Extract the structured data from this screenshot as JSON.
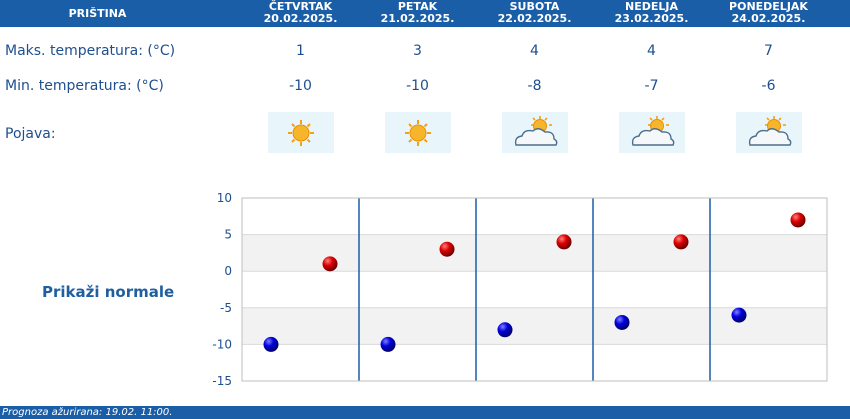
{
  "header": {
    "city": "PRIŠTINA",
    "days": [
      {
        "name": "ČETVRTAK",
        "date": "20.02.2025."
      },
      {
        "name": "PETAK",
        "date": "21.02.2025."
      },
      {
        "name": "SUBOTA",
        "date": "22.02.2025."
      },
      {
        "name": "NEDELJA",
        "date": "23.02.2025."
      },
      {
        "name": "PONEDELJAK",
        "date": "24.02.2025."
      }
    ]
  },
  "rows": {
    "max_label": "Maks. temperatura: (°C)",
    "min_label": "Min. temperatura: (°C)",
    "phen_label": "Pojava:",
    "max_values": [
      "1",
      "3",
      "4",
      "4",
      "7"
    ],
    "min_values": [
      "-10",
      "-10",
      "-8",
      "-7",
      "-6"
    ],
    "icons": [
      "sunny-icon",
      "sunny-icon",
      "sun-behind-cloud-icon",
      "sun-behind-cloud-icon",
      "sun-behind-cloud-icon"
    ]
  },
  "normals_link": "Prikaži normale",
  "footer": {
    "text": "Prognoza ažurirana:  19.02. 11:00."
  },
  "colors": {
    "header_bg": "#1a5ea8",
    "text": "#1f4f8f",
    "max_marker": "#cc0000",
    "min_marker": "#0000cc",
    "band": "#f2f2f2"
  },
  "chart_data": {
    "type": "scatter",
    "categories": [
      "20.02.2025.",
      "21.02.2025.",
      "22.02.2025.",
      "23.02.2025.",
      "24.02.2025."
    ],
    "series": [
      {
        "values": [
          1,
          3,
          4,
          4,
          7
        ]
      },
      {
        "values": [
          -10,
          -10,
          -8,
          -7,
          -6
        ]
      }
    ],
    "ylim": [
      -15,
      10
    ],
    "yticks": [
      "10",
      "5",
      "0",
      "-5",
      "-10",
      "-15"
    ],
    "grid": true
  }
}
